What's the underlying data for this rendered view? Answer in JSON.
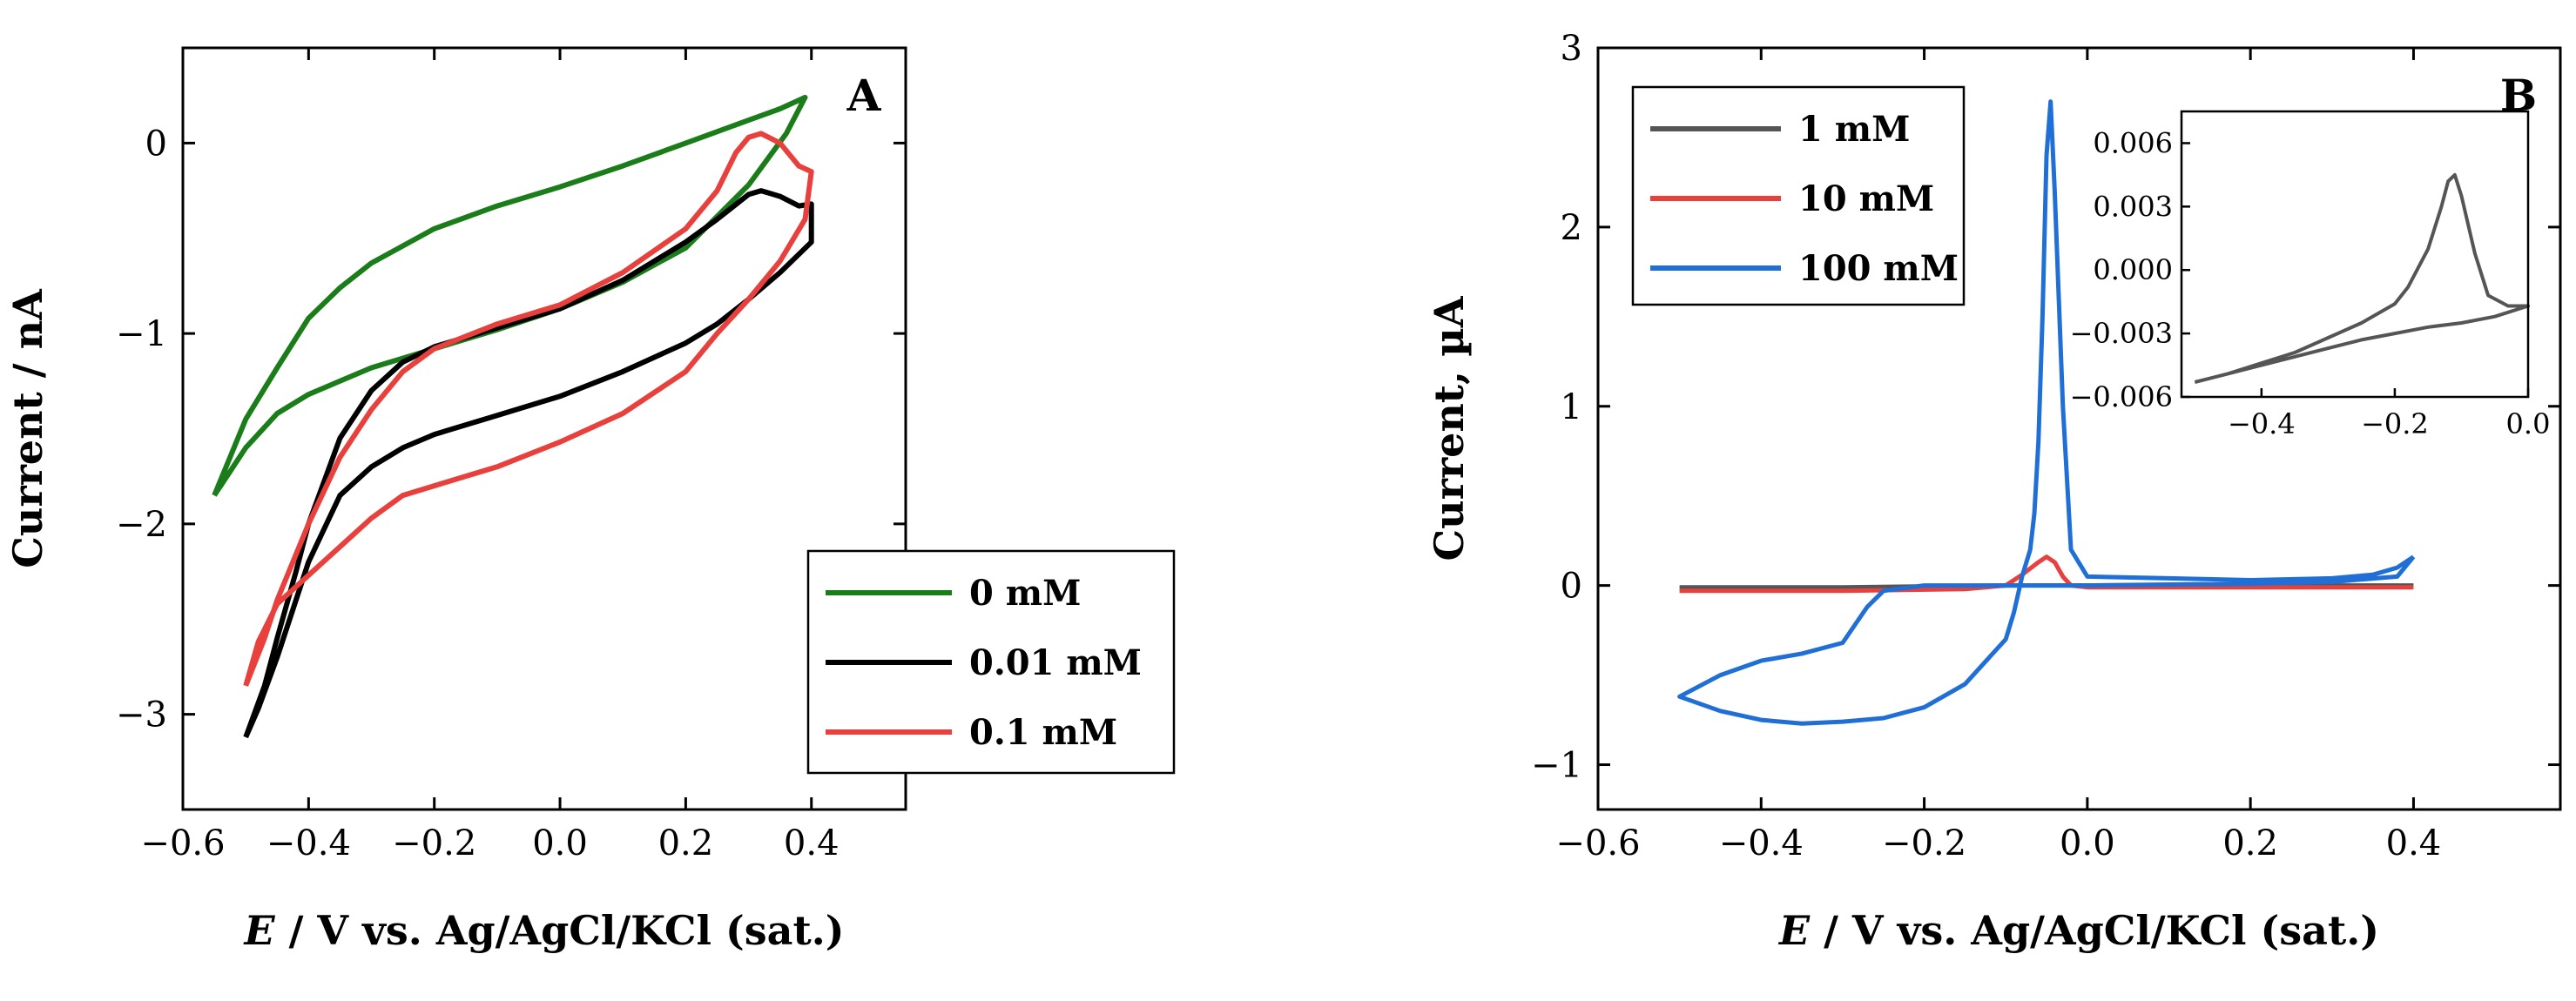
{
  "chart_data": [
    {
      "type": "line",
      "panel_label": "A",
      "xlabel_italic": "E",
      "xlabel_rest": " / V vs. Ag/AgCl/KCl (sat.)",
      "ylabel": "Current / nA",
      "xlim": [
        -0.6,
        0.55
      ],
      "ylim": [
        -3.5,
        0.5
      ],
      "xticks": [
        -0.6,
        -0.4,
        -0.2,
        0.0,
        0.2,
        0.4
      ],
      "xtick_labels": [
        "−0.6",
        "−0.4",
        "−0.2",
        "0.0",
        "0.2",
        "0.4"
      ],
      "yticks": [
        0,
        -1,
        -2,
        -3
      ],
      "ytick_labels": [
        "0",
        "−1",
        "−2",
        "−3"
      ],
      "legend_position": "bottom-right",
      "series": [
        {
          "name": "0 mM",
          "color": "#1a7d1a",
          "x": [
            -0.55,
            -0.5,
            -0.45,
            -0.4,
            -0.35,
            -0.3,
            -0.2,
            -0.1,
            0.0,
            0.1,
            0.2,
            0.3,
            0.35,
            0.39,
            0.36,
            0.3,
            0.2,
            0.1,
            0.0,
            -0.1,
            -0.2,
            -0.3,
            -0.4,
            -0.45,
            -0.5,
            -0.55
          ],
          "y": [
            -1.85,
            -1.45,
            -1.18,
            -0.92,
            -0.76,
            -0.63,
            -0.45,
            -0.33,
            -0.23,
            -0.12,
            0.0,
            0.12,
            0.18,
            0.24,
            0.05,
            -0.22,
            -0.55,
            -0.73,
            -0.87,
            -0.98,
            -1.08,
            -1.18,
            -1.32,
            -1.42,
            -1.6,
            -1.85
          ]
        },
        {
          "name": "0.01 mM",
          "color": "#000000",
          "x": [
            -0.5,
            -0.47,
            -0.45,
            -0.42,
            -0.4,
            -0.35,
            -0.3,
            -0.25,
            -0.2,
            -0.1,
            0.0,
            0.1,
            0.2,
            0.25,
            0.3,
            0.32,
            0.35,
            0.38,
            0.4,
            0.4,
            0.35,
            0.3,
            0.25,
            0.2,
            0.1,
            0.0,
            -0.1,
            -0.2,
            -0.25,
            -0.3,
            -0.35,
            -0.4,
            -0.45,
            -0.48,
            -0.5
          ],
          "y": [
            -3.12,
            -2.85,
            -2.6,
            -2.25,
            -2.0,
            -1.55,
            -1.3,
            -1.15,
            -1.07,
            -0.97,
            -0.87,
            -0.72,
            -0.52,
            -0.4,
            -0.27,
            -0.25,
            -0.28,
            -0.33,
            -0.32,
            -0.52,
            -0.68,
            -0.82,
            -0.95,
            -1.05,
            -1.2,
            -1.33,
            -1.43,
            -1.53,
            -1.6,
            -1.7,
            -1.85,
            -2.2,
            -2.7,
            -2.97,
            -3.12
          ]
        },
        {
          "name": "0.1 mM",
          "color": "#e8403c",
          "x": [
            -0.5,
            -0.47,
            -0.45,
            -0.4,
            -0.35,
            -0.3,
            -0.25,
            -0.2,
            -0.1,
            0.0,
            0.1,
            0.2,
            0.25,
            0.28,
            0.3,
            0.32,
            0.35,
            0.38,
            0.4,
            0.39,
            0.35,
            0.3,
            0.25,
            0.2,
            0.1,
            0.0,
            -0.1,
            -0.2,
            -0.25,
            -0.3,
            -0.35,
            -0.4,
            -0.45,
            -0.48,
            -0.5
          ],
          "y": [
            -2.85,
            -2.6,
            -2.4,
            -2.0,
            -1.65,
            -1.4,
            -1.2,
            -1.08,
            -0.95,
            -0.85,
            -0.68,
            -0.45,
            -0.25,
            -0.05,
            0.03,
            0.05,
            0.0,
            -0.12,
            -0.15,
            -0.4,
            -0.62,
            -0.82,
            -1.0,
            -1.2,
            -1.42,
            -1.57,
            -1.7,
            -1.8,
            -1.85,
            -1.97,
            -2.12,
            -2.27,
            -2.42,
            -2.62,
            -2.85
          ]
        }
      ]
    },
    {
      "type": "line",
      "panel_label": "B",
      "xlabel_italic": "E",
      "xlabel_rest": " / V vs. Ag/AgCl/KCl (sat.)",
      "ylabel": "Current, µA",
      "xlim": [
        -0.6,
        0.58
      ],
      "ylim": [
        -1.25,
        3.0
      ],
      "xticks": [
        -0.6,
        -0.4,
        -0.2,
        0.0,
        0.2,
        0.4
      ],
      "xtick_labels": [
        "−0.6",
        "−0.4",
        "−0.2",
        "0.0",
        "0.2",
        "0.4"
      ],
      "yticks": [
        3,
        2,
        1,
        0,
        -1
      ],
      "ytick_labels": [
        "3",
        "2",
        "1",
        "0",
        "−1"
      ],
      "legend_position": "top-left",
      "series": [
        {
          "name": "1 mM",
          "color": "#555555",
          "x": [
            -0.5,
            -0.3,
            -0.1,
            0.0,
            0.2,
            0.4
          ],
          "y": [
            -0.01,
            -0.01,
            0.0,
            0.0,
            0.0,
            0.0
          ]
        },
        {
          "name": "10 mM",
          "color": "#e8403c",
          "x": [
            -0.5,
            -0.3,
            -0.15,
            -0.1,
            -0.08,
            -0.06,
            -0.05,
            -0.04,
            -0.03,
            -0.02,
            0.0,
            0.2,
            0.4
          ],
          "y": [
            -0.03,
            -0.03,
            -0.02,
            0.0,
            0.06,
            0.13,
            0.16,
            0.13,
            0.05,
            0.0,
            -0.01,
            -0.01,
            -0.01
          ]
        },
        {
          "name": "100 mM",
          "color": "#1f6fd6",
          "x": [
            0.4,
            0.38,
            0.35,
            0.3,
            0.2,
            0.1,
            0.0,
            -0.02,
            -0.03,
            -0.04,
            -0.045,
            -0.05,
            -0.055,
            -0.06,
            -0.065,
            -0.07,
            -0.08,
            -0.09,
            -0.1,
            -0.15,
            -0.2,
            -0.25,
            -0.3,
            -0.35,
            -0.4,
            -0.45,
            -0.5,
            -0.45,
            -0.4,
            -0.35,
            -0.3,
            -0.27,
            -0.25,
            -0.2,
            -0.1,
            0.0,
            0.2,
            0.3,
            0.38,
            0.4
          ],
          "y": [
            0.16,
            0.1,
            0.06,
            0.04,
            0.03,
            0.04,
            0.05,
            0.2,
            1.0,
            2.2,
            2.7,
            2.4,
            1.5,
            0.8,
            0.4,
            0.2,
            0.05,
            -0.15,
            -0.3,
            -0.55,
            -0.68,
            -0.74,
            -0.76,
            -0.77,
            -0.75,
            -0.7,
            -0.62,
            -0.5,
            -0.42,
            -0.38,
            -0.32,
            -0.12,
            -0.03,
            0.0,
            0.0,
            0.0,
            0.01,
            0.02,
            0.05,
            0.16
          ]
        }
      ],
      "inset": {
        "xlim": [
          -0.52,
          0.0
        ],
        "ylim": [
          -0.006,
          0.0075
        ],
        "xticks": [
          -0.4,
          -0.2,
          0.0
        ],
        "xtick_labels": [
          "−0.4",
          "−0.2",
          "0.0"
        ],
        "yticks": [
          0.006,
          0.003,
          0.0,
          -0.003,
          -0.006
        ],
        "ytick_labels": [
          "0.006",
          "0.003",
          "0.000",
          "−0.003",
          "−0.006"
        ],
        "series": [
          {
            "name": "1 mM (inset)",
            "color": "#555555",
            "x": [
              -0.5,
              -0.45,
              -0.4,
              -0.35,
              -0.3,
              -0.25,
              -0.2,
              -0.18,
              -0.15,
              -0.13,
              -0.12,
              -0.11,
              -0.1,
              -0.08,
              -0.06,
              -0.03,
              0.0,
              -0.05,
              -0.1,
              -0.15,
              -0.2,
              -0.25,
              -0.3,
              -0.35,
              -0.4,
              -0.45,
              -0.5
            ],
            "y": [
              -0.0053,
              -0.0049,
              -0.0044,
              -0.0039,
              -0.0032,
              -0.0025,
              -0.0016,
              -0.0008,
              0.001,
              0.003,
              0.0042,
              0.0045,
              0.0035,
              0.0008,
              -0.0012,
              -0.0017,
              -0.0017,
              -0.0022,
              -0.0025,
              -0.0027,
              -0.003,
              -0.0033,
              -0.0037,
              -0.0041,
              -0.0045,
              -0.0049,
              -0.0053
            ]
          }
        ]
      }
    }
  ]
}
